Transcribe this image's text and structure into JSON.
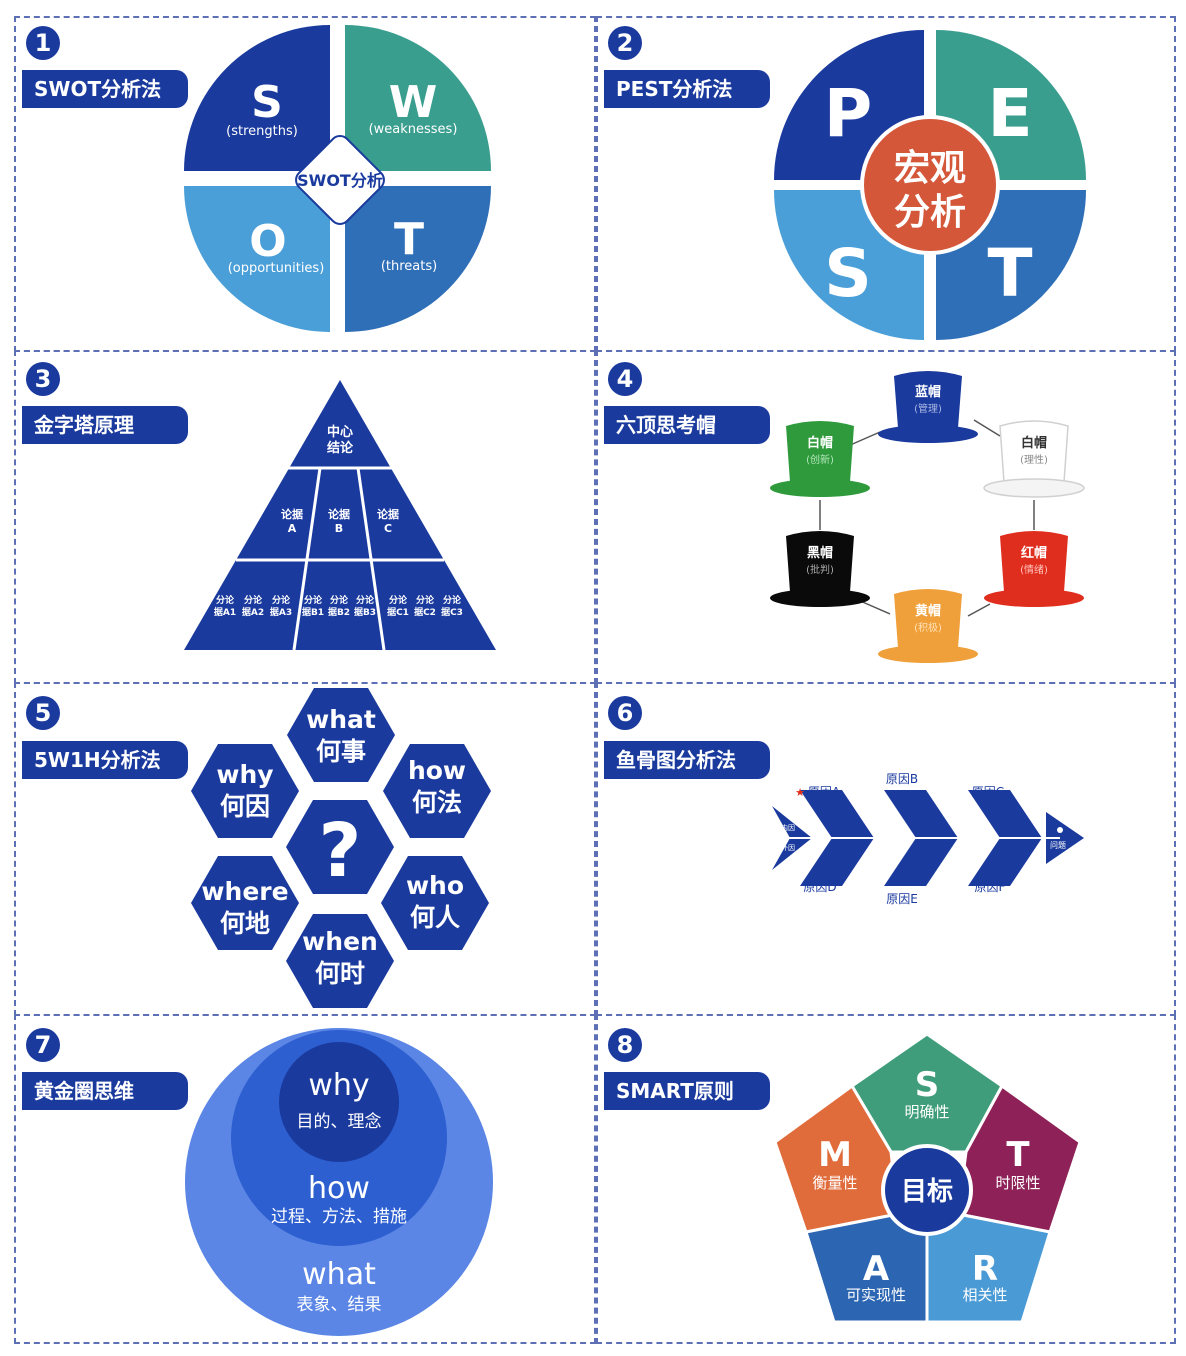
{
  "panels": [
    {
      "num": "1",
      "title": "SWOT分析法"
    },
    {
      "num": "2",
      "title": "PEST分析法"
    },
    {
      "num": "3",
      "title": "金字塔原理"
    },
    {
      "num": "4",
      "title": "六顶思考帽"
    },
    {
      "num": "5",
      "title": "5W1H分析法"
    },
    {
      "num": "6",
      "title": "鱼骨图分析法"
    },
    {
      "num": "7",
      "title": "黄金圈思维"
    },
    {
      "num": "8",
      "title": "SMART原则"
    }
  ],
  "swot": {
    "center": "SWOT分析",
    "s": {
      "letter": "S",
      "sub": "(strengths)"
    },
    "w": {
      "letter": "W",
      "sub": "(weaknesses)"
    },
    "o": {
      "letter": "O",
      "sub": "(opportunities)"
    },
    "t": {
      "letter": "T",
      "sub": "(threats)"
    }
  },
  "pest": {
    "p": "P",
    "e": "E",
    "s": "S",
    "t": "T",
    "center1": "宏观",
    "center2": "分析"
  },
  "pyramid": {
    "top1": "中心",
    "top2": "结论",
    "mid": [
      [
        "论据",
        "A"
      ],
      [
        "论据",
        "B"
      ],
      [
        "论据",
        "C"
      ]
    ],
    "bottom": [
      [
        "分论",
        "据A1"
      ],
      [
        "分论",
        "据A2"
      ],
      [
        "分论",
        "据A3"
      ],
      [
        "分论",
        "据B1"
      ],
      [
        "分论",
        "据B2"
      ],
      [
        "分论",
        "据B3"
      ],
      [
        "分论",
        "据C1"
      ],
      [
        "分论",
        "据C2"
      ],
      [
        "分论",
        "据C3"
      ]
    ]
  },
  "hats": [
    {
      "name": "蓝帽",
      "sub": "(管理)"
    },
    {
      "name": "白帽",
      "sub": "(理性)"
    },
    {
      "name": "红帽",
      "sub": "(情绪)"
    },
    {
      "name": "黄帽",
      "sub": "(积极)"
    },
    {
      "name": "黑帽",
      "sub": "(批判)"
    },
    {
      "name": "白帽",
      "sub": "(创新)"
    }
  ],
  "w5h1": {
    "center": "?",
    "what": [
      "what",
      "何事"
    ],
    "why": [
      "why",
      "何因"
    ],
    "how": [
      "how",
      "何法"
    ],
    "where": [
      "where",
      "何地"
    ],
    "who": [
      "who",
      "何人"
    ],
    "when": [
      "when",
      "何时"
    ]
  },
  "fishbone": {
    "causes": [
      "原因A",
      "原因B",
      "原因C",
      "原因D",
      "原因E",
      "原因F"
    ],
    "inner": "内因",
    "outer": "外因",
    "problem": "问题"
  },
  "golden": {
    "why": "why",
    "why_sub": "目的、理念",
    "how": "how",
    "how_sub": "过程、方法、措施",
    "what": "what",
    "what_sub": "表象、结果"
  },
  "smart": {
    "center": "目标",
    "s": [
      "S",
      "明确性"
    ],
    "m": [
      "M",
      "衡量性"
    ],
    "t": [
      "T",
      "时限性"
    ],
    "a": [
      "A",
      "可实现性"
    ],
    "r": [
      "R",
      "相关性"
    ]
  },
  "colors": {
    "navy": "#1a3a9e",
    "teal": "#3a9e8f",
    "light_blue": "#4a9fd8",
    "mid_blue": "#2f6fb8",
    "orange_red": "#d4573a",
    "smart_green": "#3f9d7c",
    "smart_orange": "#e06b3b",
    "smart_magenta": "#8e2258",
    "smart_blue": "#2c66b2",
    "smart_light": "#4a9ad6"
  }
}
